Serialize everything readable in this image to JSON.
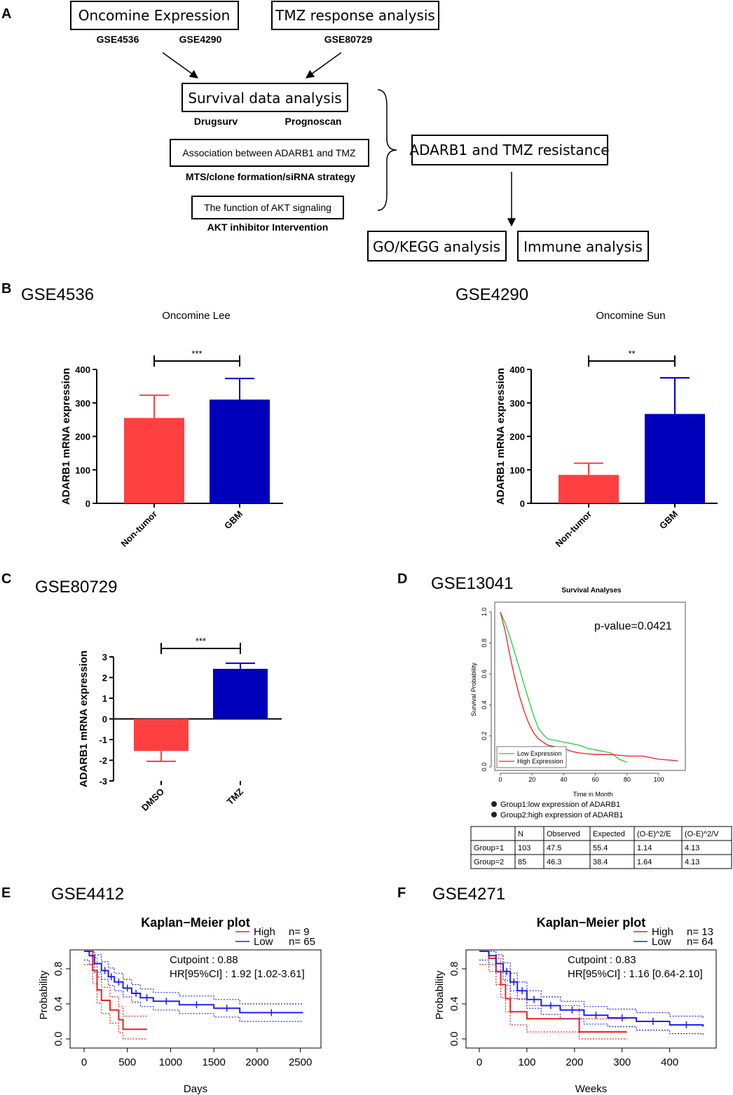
{
  "panel_labels": {
    "a": "A",
    "b": "B",
    "c": "C",
    "d": "D",
    "e": "E",
    "f": "F"
  },
  "flow": {
    "oncomine": "Oncomine Expression",
    "gse4536": "GSE4536",
    "gse4290": "GSE4290",
    "tmz_response": "TMZ response analysis",
    "gse80729": "GSE80729",
    "survival": "Survival data analysis",
    "drugsurv": "Drugsurv",
    "prognoscan": "Prognoscan",
    "association": "Association between ADARB1 and TMZ",
    "mts": "MTS/clone formation/siRNA strategy",
    "akt_function": "The function of AKT signaling",
    "akt_inhibitor": "AKT inhibitor Intervention",
    "adarb1_tmz": "ADARB1 and TMZ resistance",
    "go_kegg": "GO/KEGG analysis",
    "immune": "Immune analysis"
  },
  "colors": {
    "red": "#ff4040",
    "blue": "#0000bb",
    "km_red": "#ee2020",
    "km_blue": "#2020ee",
    "green": "#22cc44"
  },
  "chart_data": [
    {
      "id": "B1",
      "type": "bar",
      "dataset": "GSE4536",
      "title": "Oncomine Lee",
      "ylabel": "ADARB1 mRNA expression",
      "categories": [
        "Non-tumor",
        "GBM"
      ],
      "values": [
        255,
        310
      ],
      "errors": [
        68,
        63
      ],
      "ylim": [
        0,
        400
      ],
      "yticks": [
        "0",
        "100",
        "200",
        "300",
        "400"
      ],
      "significance": "***"
    },
    {
      "id": "B2",
      "type": "bar",
      "dataset": "GSE4290",
      "title": "Oncomine Sun",
      "ylabel": "ADARB1 mRNA expression",
      "categories": [
        "Non-tumor",
        "GBM"
      ],
      "values": [
        85,
        267
      ],
      "errors": [
        35,
        108
      ],
      "ylim": [
        0,
        400
      ],
      "yticks": [
        "0",
        "100",
        "200",
        "300",
        "400"
      ],
      "significance": "**"
    },
    {
      "id": "C",
      "type": "bar",
      "dataset": "GSE80729",
      "ylabel": "ADARB1 mRNA expression",
      "categories": [
        "DMSO",
        "TMZ"
      ],
      "values": [
        -1.55,
        2.42
      ],
      "errors": [
        0.5,
        0.27
      ],
      "ylim": [
        -3,
        3
      ],
      "yticks": [
        "-3",
        "-2",
        "-1",
        "0",
        "1",
        "2",
        "3"
      ],
      "significance": "***"
    },
    {
      "id": "D",
      "type": "line",
      "dataset": "GSE13041",
      "title": "Survival Analyses",
      "xlabel": "Time in Month",
      "ylabel": "Survival Probability",
      "xlim": [
        0,
        115
      ],
      "ylim": [
        0,
        1
      ],
      "xticks": [
        "0",
        "20",
        "40",
        "60",
        "80",
        "100"
      ],
      "yticks": [
        "0.0",
        "0.2",
        "0.4",
        "0.6",
        "0.8",
        "1.0"
      ],
      "pvalue": "p-value=0.0421",
      "series": [
        {
          "name": "Low Expression",
          "x": [
            0,
            3,
            6,
            9,
            12,
            15,
            18,
            21,
            24,
            27,
            30,
            35,
            40,
            45,
            50,
            55,
            60,
            65,
            70,
            75,
            80
          ],
          "y": [
            1.0,
            0.93,
            0.84,
            0.74,
            0.64,
            0.53,
            0.43,
            0.33,
            0.25,
            0.21,
            0.18,
            0.17,
            0.16,
            0.15,
            0.14,
            0.12,
            0.11,
            0.1,
            0.09,
            0.05,
            0.03
          ]
        },
        {
          "name": "High Expression",
          "x": [
            0,
            3,
            6,
            9,
            12,
            15,
            18,
            21,
            24,
            27,
            30,
            35,
            40,
            45,
            50,
            60,
            70,
            80,
            90,
            100,
            112
          ],
          "y": [
            1.0,
            0.88,
            0.72,
            0.58,
            0.46,
            0.36,
            0.28,
            0.22,
            0.18,
            0.16,
            0.14,
            0.13,
            0.12,
            0.1,
            0.09,
            0.08,
            0.08,
            0.07,
            0.07,
            0.05,
            0.04
          ]
        }
      ],
      "groups_legend": [
        "Group1:low expression of ADARB1",
        "Group2:high expression of ADARB1"
      ],
      "table": {
        "columns": [
          "",
          "N",
          "Observed",
          "Expected",
          "(O-E)^2/E",
          "(O-E)^2/V"
        ],
        "rows": [
          [
            "Group=1",
            "103",
            "47.5",
            "55.4",
            "1.14",
            "4.13"
          ],
          [
            "Group=2",
            "85",
            "46.3",
            "38.4",
            "1.64",
            "4.13"
          ]
        ]
      }
    },
    {
      "id": "E",
      "type": "line",
      "dataset": "GSE4412",
      "title": "Kaplan−Meier plot",
      "xlabel": "Days",
      "ylabel": "Probability",
      "xlim": [
        0,
        2600
      ],
      "ylim": [
        0,
        1
      ],
      "xticks": [
        "0",
        "500",
        "1000",
        "1500",
        "2000",
        "2500"
      ],
      "yticks": [
        "0.0",
        "0.4",
        "0.8"
      ],
      "cutpoint": "Cutpoint : 0.88",
      "hr": "HR[95%CI] : 1.92 [1.02-3.61]",
      "legend": [
        {
          "label": "High",
          "n": "n= 9"
        },
        {
          "label": "Low",
          "n": "n= 65"
        }
      ],
      "series": [
        {
          "name": "High",
          "x": [
            0,
            100,
            150,
            200,
            300,
            400,
            450,
            730
          ],
          "y": [
            1.0,
            0.78,
            0.56,
            0.44,
            0.33,
            0.22,
            0.11,
            0.11
          ]
        },
        {
          "name": "Low",
          "x": [
            0,
            60,
            120,
            200,
            280,
            350,
            450,
            550,
            650,
            800,
            1100,
            1500,
            1800,
            2530
          ],
          "y": [
            1.0,
            0.95,
            0.86,
            0.78,
            0.71,
            0.65,
            0.58,
            0.52,
            0.47,
            0.43,
            0.39,
            0.35,
            0.3,
            0.3
          ]
        }
      ]
    },
    {
      "id": "F",
      "type": "line",
      "dataset": "GSE4271",
      "title": "Kaplan−Meier plot",
      "xlabel": "Weeks",
      "ylabel": "Probability",
      "xlim": [
        0,
        480
      ],
      "ylim": [
        0,
        1
      ],
      "xticks": [
        "0",
        "100",
        "200",
        "300",
        "400"
      ],
      "yticks": [
        "0.0",
        "0.4",
        "0.8"
      ],
      "cutpoint": "Cutpoint : 0.83",
      "hr": "HR[95%CI] : 1.16 [0.64-2.10]",
      "legend": [
        {
          "label": "High",
          "n": "n= 13"
        },
        {
          "label": "Low",
          "n": "n= 64"
        }
      ],
      "series": [
        {
          "name": "High",
          "x": [
            0,
            20,
            35,
            45,
            55,
            65,
            100,
            210,
            310
          ],
          "y": [
            1.0,
            0.92,
            0.77,
            0.62,
            0.46,
            0.31,
            0.23,
            0.08,
            0.08
          ]
        },
        {
          "name": "Low",
          "x": [
            0,
            20,
            35,
            50,
            65,
            80,
            100,
            130,
            170,
            220,
            270,
            330,
            400,
            470
          ],
          "y": [
            1.0,
            0.95,
            0.86,
            0.77,
            0.65,
            0.55,
            0.45,
            0.38,
            0.33,
            0.27,
            0.24,
            0.2,
            0.16,
            0.14
          ]
        }
      ]
    }
  ]
}
